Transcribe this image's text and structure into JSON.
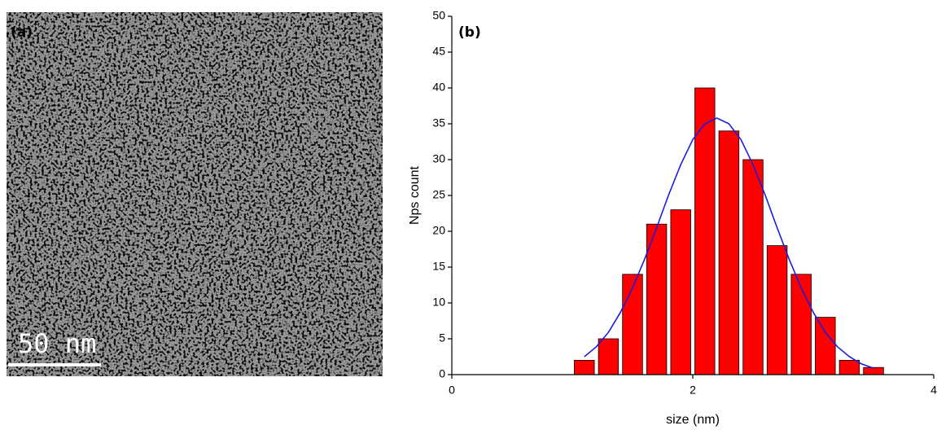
{
  "panel_a": {
    "label": "(a)",
    "scale_bar": "50 nm"
  },
  "chart_data": {
    "type": "histogram",
    "panel_label": "(b)",
    "x_label": "size (nm)",
    "y_label": "Nps count",
    "bins": [
      1.0,
      1.2,
      1.4,
      1.6,
      1.8,
      2.0,
      2.2,
      2.4,
      2.6,
      2.8,
      3.0,
      3.2,
      3.4,
      3.6
    ],
    "values": [
      2,
      5,
      14,
      21,
      23,
      40,
      34,
      30,
      18,
      14,
      8,
      2,
      1
    ],
    "color": "#ff0000",
    "fit": {
      "color": "#1c1cdc",
      "x": [
        1.1,
        1.2,
        1.3,
        1.4,
        1.5,
        1.6,
        1.7,
        1.8,
        1.9,
        2.0,
        2.1,
        2.2,
        2.3,
        2.4,
        2.5,
        2.6,
        2.7,
        2.8,
        2.9,
        3.0,
        3.1,
        3.2,
        3.3,
        3.4,
        3.5
      ],
      "values": [
        2.5,
        3.9,
        5.9,
        8.7,
        12.1,
        16.1,
        20.5,
        25.1,
        29.3,
        32.8,
        35.0,
        35.8,
        35.0,
        32.8,
        29.3,
        25.1,
        20.5,
        16.1,
        12.1,
        8.7,
        5.9,
        3.9,
        2.5,
        1.5,
        0.9
      ]
    },
    "xlim": [
      0,
      4
    ],
    "xticks": [
      0,
      2,
      4
    ],
    "ylim": [
      0,
      50
    ],
    "yticks": [
      0,
      5,
      10,
      15,
      20,
      25,
      30,
      35,
      40,
      45,
      50
    ],
    "grid": false
  }
}
